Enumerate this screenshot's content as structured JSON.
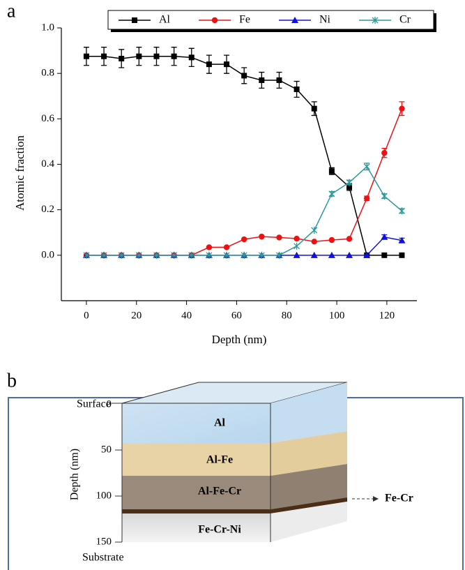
{
  "panel_labels": [
    "a",
    "b"
  ],
  "chart_data": {
    "type": "line",
    "x_label": "Depth (nm)",
    "y_label": "Atomic fraction",
    "legend": "top",
    "x": [
      0,
      7,
      14,
      21,
      28,
      35,
      42,
      49,
      56,
      63,
      70,
      77,
      84,
      91,
      98,
      105,
      112,
      119,
      126
    ],
    "series": [
      {
        "name": "Al",
        "color": "#000000",
        "marker": "square",
        "values": [
          0.875,
          0.875,
          0.865,
          0.875,
          0.875,
          0.875,
          0.87,
          0.84,
          0.84,
          0.79,
          0.77,
          0.77,
          0.73,
          0.645,
          0.37,
          0.3,
          0,
          0,
          0
        ],
        "errors": [
          0.04,
          0.04,
          0.04,
          0.04,
          0.04,
          0.04,
          0.04,
          0.04,
          0.04,
          0.035,
          0.035,
          0.035,
          0.035,
          0.03,
          0.015,
          0.015,
          0,
          0,
          0
        ]
      },
      {
        "name": "Fe",
        "color": "#ee1111",
        "marker": "circle",
        "values": [
          0,
          0,
          0,
          0,
          0,
          0,
          0,
          0.035,
          0.035,
          0.07,
          0.082,
          0.078,
          0.073,
          0.06,
          0.067,
          0.072,
          0.25,
          0.45,
          0.645
        ],
        "errors": [
          0,
          0,
          0,
          0,
          0,
          0,
          0,
          0,
          0,
          0,
          0,
          0,
          0,
          0,
          0,
          0,
          0.01,
          0.02,
          0.03
        ]
      },
      {
        "name": "Ni",
        "color": "#1111dd",
        "marker": "triangle",
        "values": [
          0,
          0,
          0,
          0,
          0,
          0,
          0,
          0,
          0,
          0,
          0,
          0,
          0,
          0,
          0,
          0,
          0,
          0.08,
          0.065
        ],
        "errors": [
          0,
          0,
          0,
          0,
          0,
          0,
          0,
          0,
          0,
          0,
          0,
          0,
          0,
          0,
          0,
          0,
          0,
          0.01,
          0.01
        ]
      },
      {
        "name": "Cr",
        "color": "#2a9a9a",
        "marker": "asterisk",
        "values": [
          0,
          0,
          0,
          0,
          0,
          0,
          0,
          0,
          0,
          0,
          0,
          0,
          0.04,
          0.11,
          0.27,
          0.32,
          0.39,
          0.26,
          0.195
        ],
        "errors": [
          0,
          0,
          0,
          0,
          0,
          0,
          0,
          0,
          0,
          0,
          0,
          0,
          0,
          0,
          0.01,
          0.01,
          0.015,
          0.01,
          0.01
        ]
      }
    ],
    "xlim": [
      -10,
      132
    ],
    "xticks": [
      0,
      20,
      40,
      60,
      80,
      100,
      120
    ],
    "ylim": [
      -0.2,
      1.0
    ],
    "yticks": [
      {
        "value": 0,
        "label": "0.0"
      },
      0.2,
      0.4,
      0.6,
      0.8,
      {
        "value": 1,
        "label": "1.0"
      }
    ]
  },
  "diagram": {
    "top_label": "Surface",
    "bottom_label": "Substrate",
    "axis_label": "Depth (nm)",
    "depth_ticks": [
      "0",
      "50",
      "100",
      "150"
    ],
    "layers": [
      "Al",
      "Al-Fe",
      "Al-Fe-Cr",
      "Fe-Cr-Ni"
    ],
    "interface_label": "Fe-Cr"
  }
}
